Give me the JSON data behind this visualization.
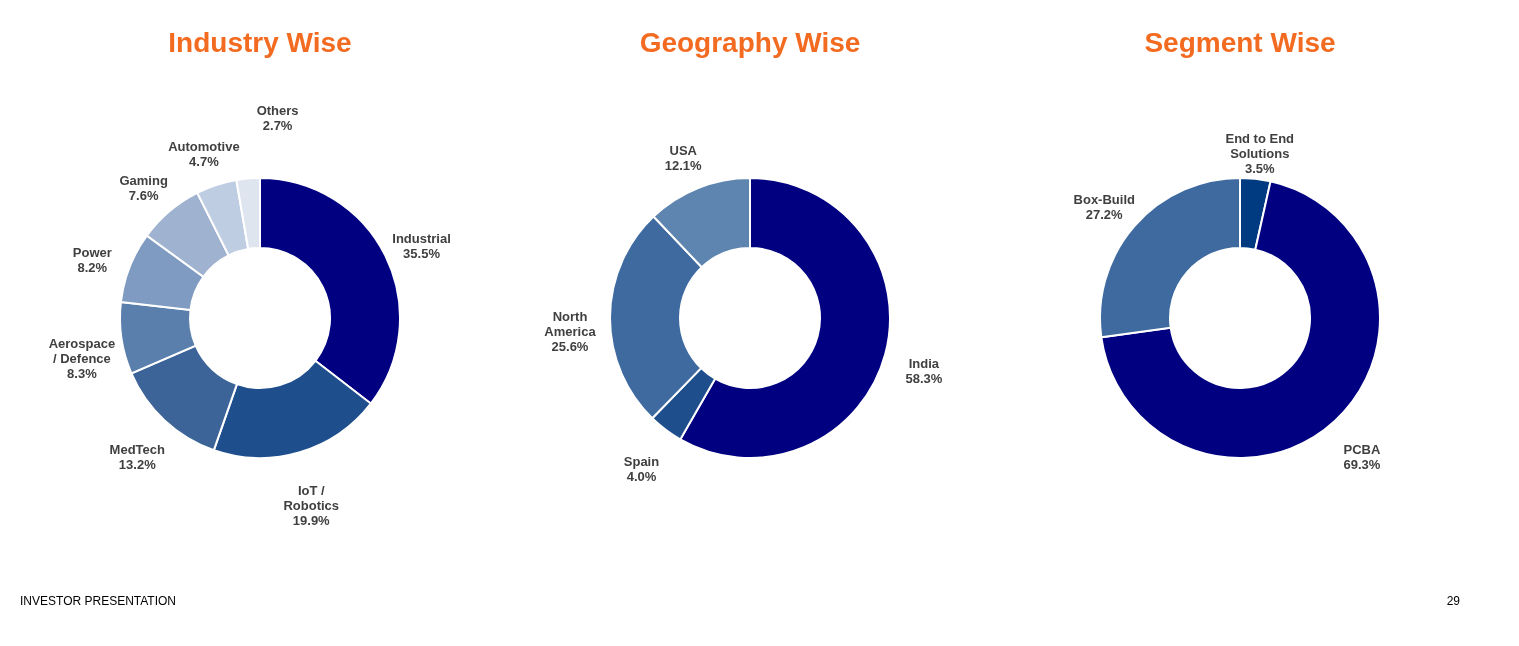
{
  "chart_data": [
    {
      "type": "donut",
      "title": "Industry Wise",
      "categories": [
        "Industrial",
        "IoT /\nRobotics",
        "MedTech",
        "Aerospace\n/ Defence",
        "Power",
        "Gaming",
        "Automotive",
        "Others"
      ],
      "values": [
        35.5,
        19.9,
        13.2,
        8.3,
        8.2,
        7.6,
        4.7,
        2.7
      ],
      "colors": [
        "#000080",
        "#1f4e8c",
        "#3c6499",
        "#5a7fad",
        "#7f9bc2",
        "#9fb2d0",
        "#bfcde2",
        "#dfe5ef"
      ],
      "value_labels": [
        "35.5%",
        "19.9%",
        "13.2%",
        "8.3%",
        "8.2%",
        "7.6%",
        "4.7%",
        "2.7%"
      ],
      "data_labels": true,
      "annotations": [
        "INVESTOR PRESENTATION"
      ]
    },
    {
      "type": "donut",
      "title": "Geography Wise",
      "categories": [
        "India",
        "Spain",
        "North\nAmerica",
        "USA"
      ],
      "values": [
        58.3,
        4.0,
        25.6,
        12.1
      ],
      "colors": [
        "#000080",
        "#1f4e8c",
        "#3e6aa0",
        "#5e84b0"
      ],
      "value_labels": [
        "58.3%",
        "4.0%",
        "25.6%",
        "12.1%"
      ],
      "data_labels": true
    },
    {
      "type": "donut",
      "title": "Segment Wise",
      "categories": [
        "End to End\nSolutions",
        "PCBA",
        "Box-Build"
      ],
      "values": [
        3.5,
        69.3,
        27.2
      ],
      "colors": [
        "#003a80",
        "#000080",
        "#3e6aa0"
      ],
      "value_labels": [
        "3.5%",
        "69.3%",
        "27.2%"
      ],
      "data_labels": true,
      "annotations": [
        "29"
      ]
    }
  ]
}
